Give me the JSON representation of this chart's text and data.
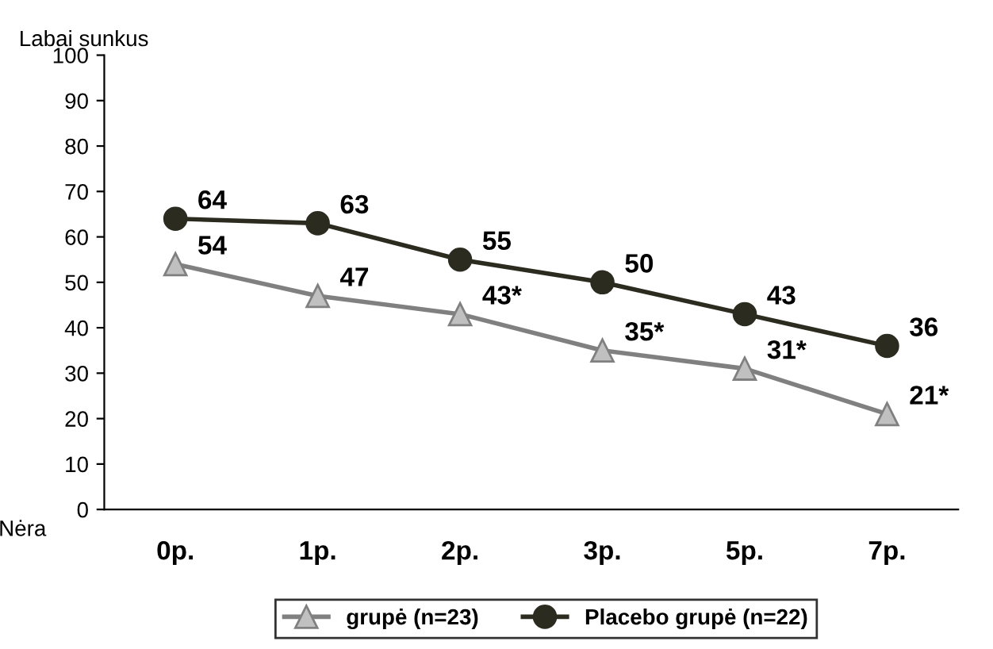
{
  "chart_data": {
    "type": "line",
    "ylabel": "Labai sunkus",
    "annotations": [
      "Nėra"
    ],
    "categories": [
      "0p.",
      "1p.",
      "2p.",
      "3p.",
      "5p.",
      "7p."
    ],
    "ylim": [
      0,
      100
    ],
    "yticks": [
      0,
      10,
      20,
      30,
      40,
      50,
      60,
      70,
      80,
      90,
      100
    ],
    "grid": false,
    "legend": "bottom",
    "series": [
      {
        "name": "grupė (n=23)",
        "color": "#808080",
        "marker": "triangle",
        "values": [
          54,
          47,
          43,
          35,
          31,
          21
        ],
        "value_labels": [
          "54",
          "47",
          "43*",
          "35*",
          "31*",
          "21*"
        ]
      },
      {
        "name": "Placebo grupė (n=22)",
        "color": "#2b2b1f",
        "marker": "circle",
        "values": [
          64,
          63,
          55,
          50,
          43,
          36
        ],
        "value_labels": [
          "64",
          "63",
          "55",
          "50",
          "43",
          "36"
        ]
      }
    ]
  }
}
